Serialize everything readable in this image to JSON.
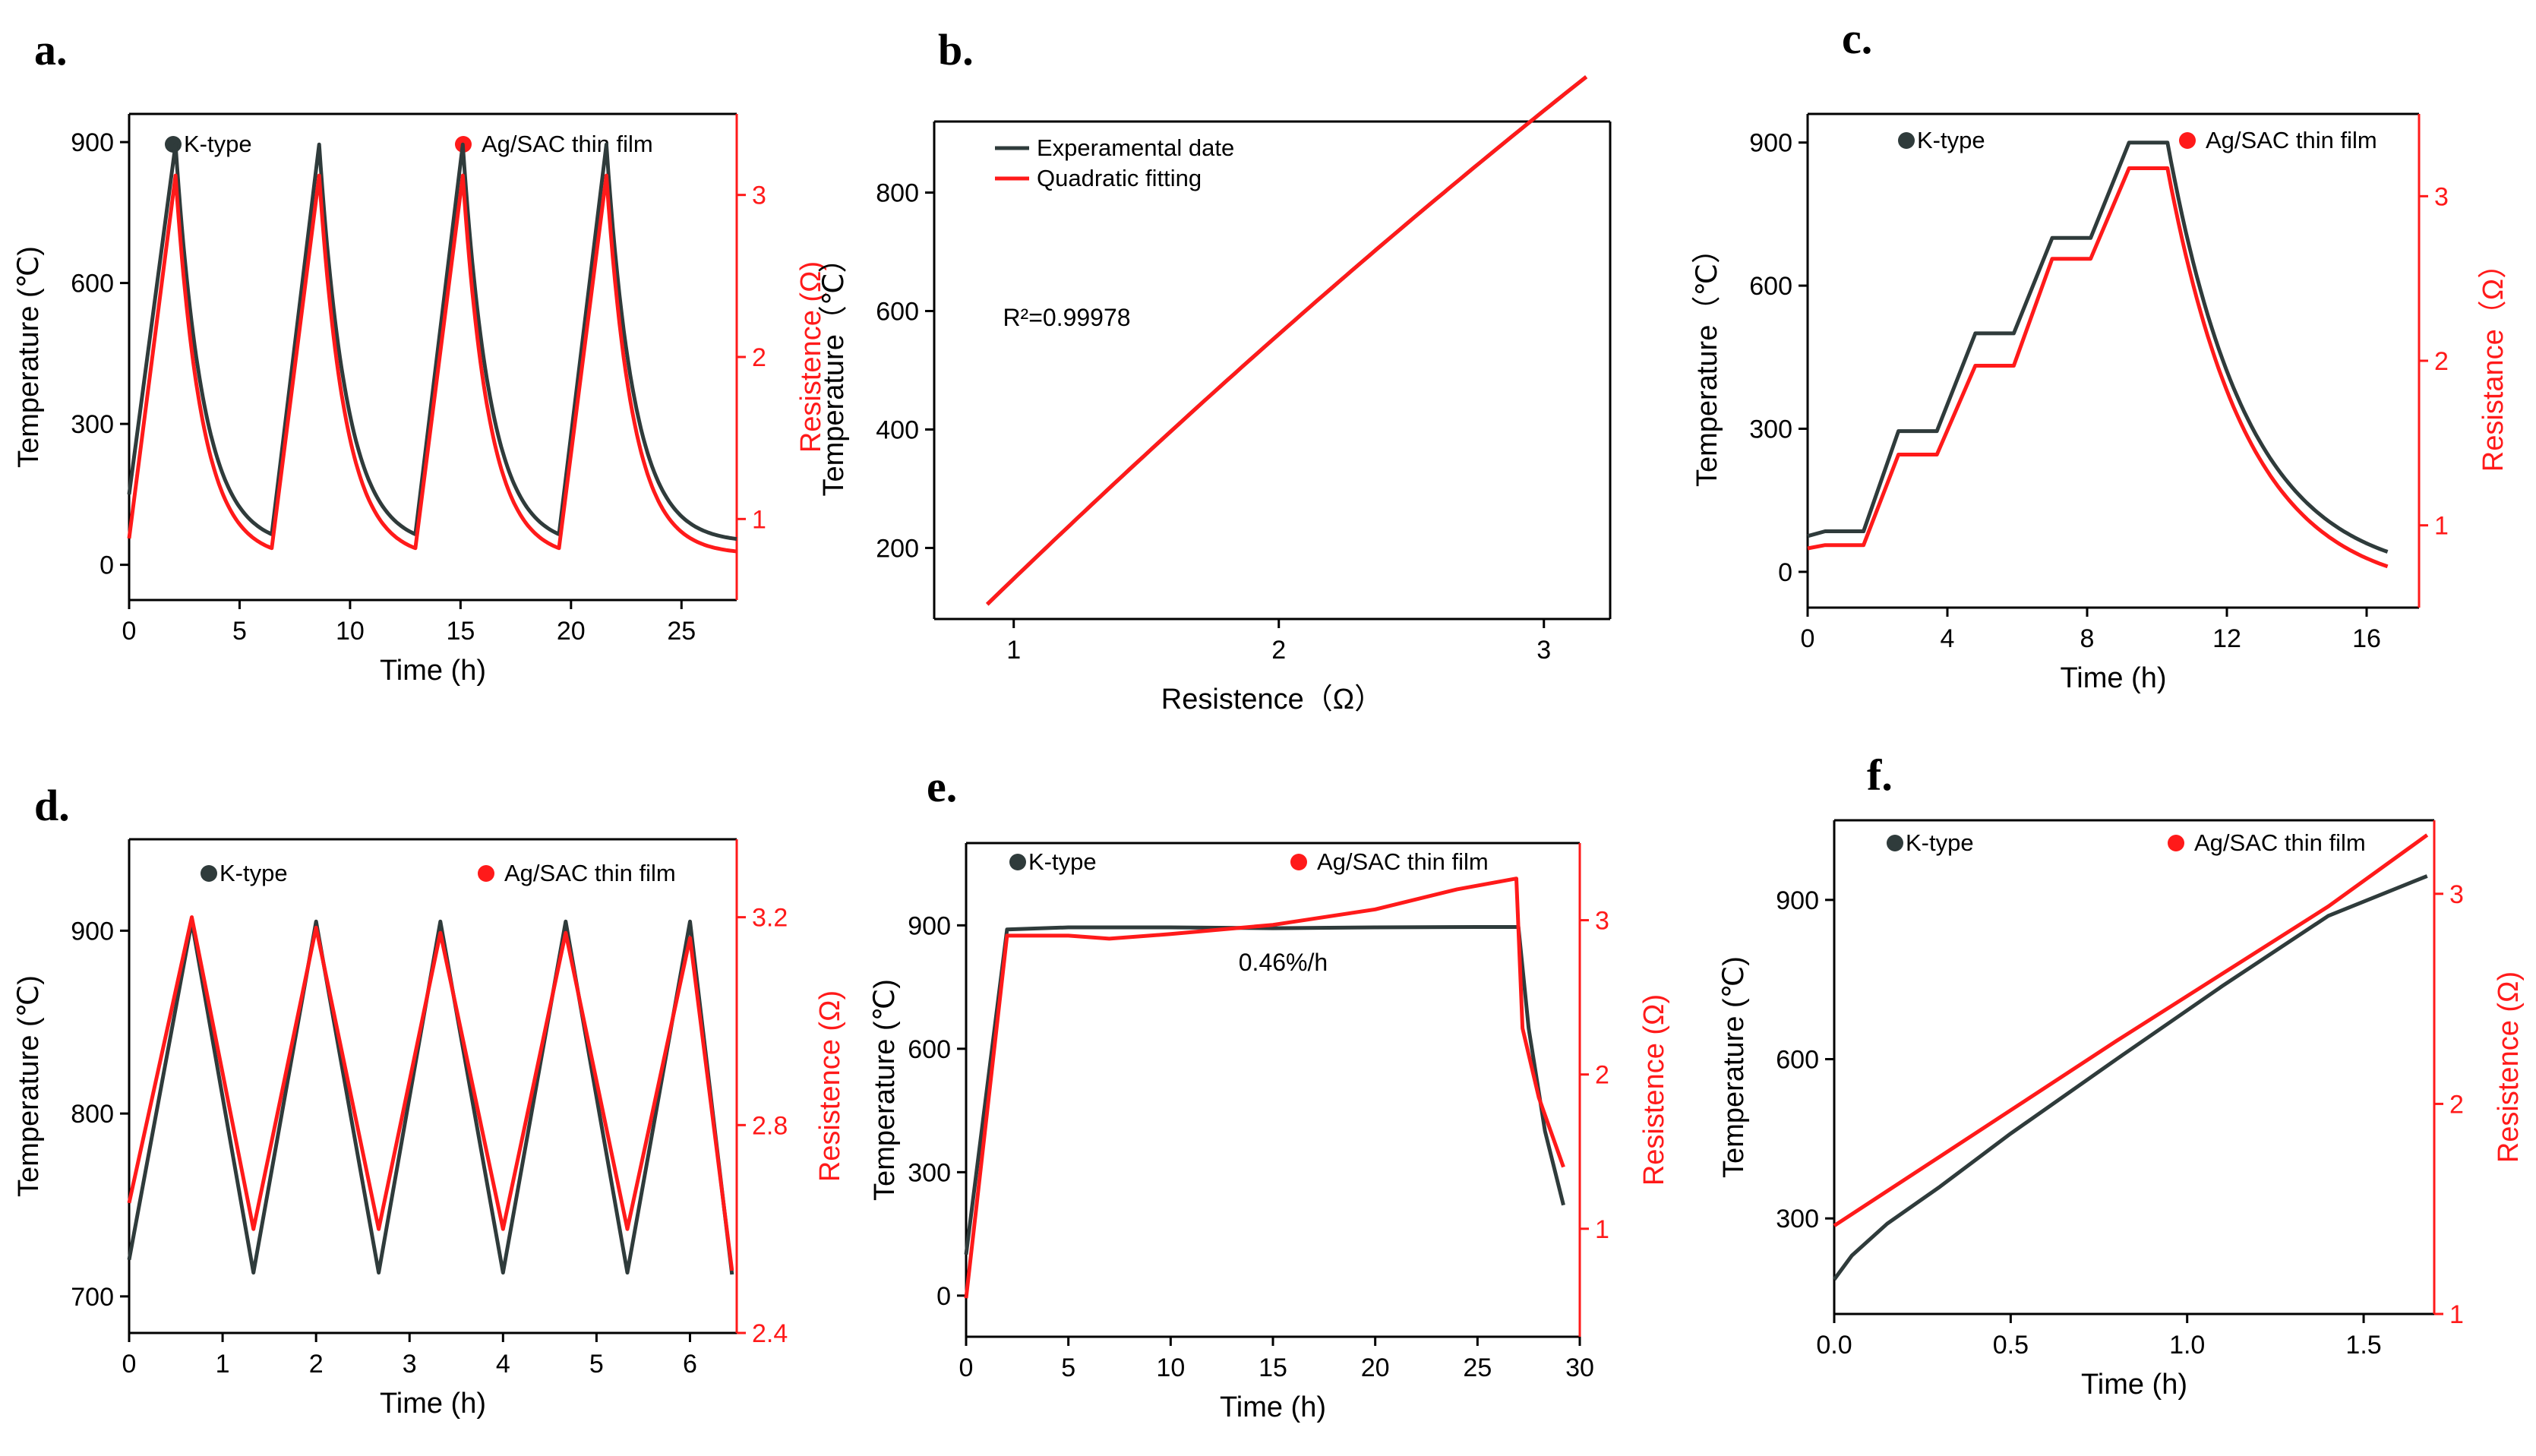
{
  "colors": {
    "k_type": "#2f3b3b",
    "film": "#ff1a1a",
    "axis": "#000000"
  },
  "chart_data": [
    {
      "id": "a",
      "panel_label": "a.",
      "type": "line",
      "title": "",
      "xlabel": "Time (h)",
      "ylabel": "Temperature (℃)",
      "y2label": "Resistence (Ω)",
      "xlim": [
        0,
        27.5
      ],
      "ylim": [
        -75,
        960
      ],
      "y2lim": [
        0.5,
        3.5
      ],
      "xticks": [
        0,
        5,
        10,
        15,
        20,
        25
      ],
      "xtick_labels": [
        "0",
        "5",
        "10",
        "15",
        "20",
        "25"
      ],
      "yticks": [
        0,
        300,
        600,
        900
      ],
      "ytick_labels": [
        "0",
        "300",
        "600",
        "900"
      ],
      "y2ticks": [
        1,
        2,
        3
      ],
      "y2tick_labels": [
        "1",
        "2",
        "3"
      ],
      "legend": [
        "K-type",
        "Ag/SAC thin film"
      ],
      "annotations": [],
      "series": [
        {
          "name": "K-type",
          "axis": "left",
          "color": "#2f3b3b",
          "kind": "cycles",
          "start": 150,
          "peak": 895,
          "trough": 65,
          "peaks_x": [
            2.1,
            8.6,
            15.1,
            21.6
          ],
          "period_end": 27.5,
          "end": 55,
          "tau": 1.25
        },
        {
          "name": "Ag/SAC thin film",
          "axis": "right",
          "color": "#ff1a1a",
          "kind": "cycles",
          "start": 0.88,
          "peak": 3.12,
          "trough": 0.82,
          "peaks_x": [
            2.1,
            8.6,
            15.1,
            21.6
          ],
          "period_end": 27.5,
          "end": 0.8,
          "tau": 1.2
        }
      ]
    },
    {
      "id": "b",
      "panel_label": "b.",
      "type": "line",
      "title": "",
      "xlabel": "Resistence（Ω）",
      "ylabel": "Temperature（℃）",
      "y2label": "",
      "xlim": [
        0.7,
        3.25
      ],
      "ylim": [
        80,
        920
      ],
      "y2lim": null,
      "xticks": [
        1,
        2,
        3
      ],
      "xtick_labels": [
        "1",
        "2",
        "3"
      ],
      "yticks": [
        200,
        400,
        600,
        800
      ],
      "ytick_labels": [
        "200",
        "400",
        "600",
        "800"
      ],
      "y2ticks": [],
      "y2tick_labels": [],
      "legend": [
        "Experamental date",
        "Quadratic fitting"
      ],
      "annotations": [
        "R²=0.99978"
      ],
      "series": [
        {
          "name": "Experamental date",
          "axis": "left",
          "color": "#2f3b3b",
          "kind": "quad",
          "x_start": 0.9,
          "x_end": 3.16,
          "a": -17.6,
          "b": 465.6,
          "c": -300
        },
        {
          "name": "Quadratic fitting",
          "axis": "left",
          "color": "#ff1a1a",
          "kind": "quad",
          "x_start": 0.9,
          "x_end": 3.16,
          "a": -17.6,
          "b": 465.6,
          "c": -300
        }
      ]
    },
    {
      "id": "c",
      "panel_label": "c.",
      "type": "line",
      "title": "",
      "xlabel": "Time (h)",
      "ylabel": "Temperature（℃）",
      "y2label": "Resistance（Ω）",
      "xlim": [
        0,
        17.5
      ],
      "ylim": [
        -75,
        960
      ],
      "y2lim": [
        0.5,
        3.5
      ],
      "xticks": [
        0,
        4,
        8,
        12,
        16
      ],
      "xtick_labels": [
        "0",
        "4",
        "8",
        "12",
        "16"
      ],
      "yticks": [
        0,
        300,
        600,
        900
      ],
      "ytick_labels": [
        "0",
        "300",
        "600",
        "900"
      ],
      "y2ticks": [
        1,
        2,
        3
      ],
      "y2tick_labels": [
        "1",
        "2",
        "3"
      ],
      "legend": [
        "K-type",
        "Ag/SAC thin film"
      ],
      "annotations": [],
      "series": [
        {
          "name": "K-type",
          "axis": "left",
          "color": "#2f3b3b",
          "kind": "points",
          "x": [
            0,
            0.5,
            1.6,
            2.6,
            3.7,
            4.8,
            5.9,
            7.0,
            8.1,
            9.2,
            10.3
          ],
          "y": [
            75,
            85,
            85,
            295,
            295,
            500,
            500,
            700,
            700,
            900,
            900
          ],
          "decay": {
            "from": 10.3,
            "to": 16.6,
            "start": 900,
            "end": 42,
            "tau": 2.3
          }
        },
        {
          "name": "Ag/SAC thin film",
          "axis": "right",
          "color": "#ff1a1a",
          "kind": "points",
          "x": [
            0,
            0.5,
            1.6,
            2.6,
            3.7,
            4.8,
            5.9,
            7.0,
            8.1,
            9.2,
            10.3
          ],
          "y": [
            0.86,
            0.88,
            0.88,
            1.43,
            1.43,
            1.97,
            1.97,
            2.62,
            2.62,
            3.17,
            3.17
          ],
          "decay": {
            "from": 10.3,
            "to": 16.6,
            "start": 3.17,
            "end": 0.75,
            "tau": 2.3
          }
        }
      ]
    },
    {
      "id": "d",
      "panel_label": "d.",
      "type": "line",
      "title": "",
      "xlabel": "Time (h)",
      "ylabel": "Temperature (℃)",
      "y2label": "Resistence (Ω)",
      "xlim": [
        0,
        6.5
      ],
      "ylim": [
        680,
        950
      ],
      "y2lim": [
        2.4,
        3.35
      ],
      "xticks": [
        0,
        1,
        2,
        3,
        4,
        5,
        6
      ],
      "xtick_labels": [
        "0",
        "1",
        "2",
        "3",
        "4",
        "5",
        "6"
      ],
      "yticks": [
        700,
        800,
        900
      ],
      "ytick_labels": [
        "700",
        "800",
        "900"
      ],
      "y2ticks": [
        2.4,
        2.8,
        3.2
      ],
      "y2tick_labels": [
        "2.4",
        "2.8",
        "3.2"
      ],
      "legend": [
        "K-type",
        "Ag/SAC thin film"
      ],
      "annotations": [],
      "series": [
        {
          "name": "K-type",
          "axis": "left",
          "color": "#2f3b3b",
          "kind": "points",
          "x": [
            0,
            0.67,
            1.33,
            2.0,
            2.67,
            3.33,
            4.0,
            4.67,
            5.33,
            6.0,
            6.45
          ],
          "y": [
            720,
            905,
            713,
            905,
            713,
            905,
            713,
            905,
            713,
            905,
            712
          ]
        },
        {
          "name": "Ag/SAC thin film",
          "axis": "right",
          "color": "#ff1a1a",
          "kind": "points",
          "x": [
            0,
            0.67,
            1.33,
            2.0,
            2.67,
            3.33,
            4.0,
            4.67,
            5.33,
            6.0,
            6.45
          ],
          "y": [
            2.65,
            3.2,
            2.6,
            3.18,
            2.6,
            3.17,
            2.6,
            3.17,
            2.6,
            3.16,
            2.52
          ]
        }
      ]
    },
    {
      "id": "e",
      "panel_label": "e.",
      "type": "line",
      "title": "",
      "xlabel": "Time (h)",
      "ylabel": "Temperature (℃)",
      "y2label": "Resistence (Ω)",
      "xlim": [
        0,
        30
      ],
      "ylim": [
        -100,
        1100
      ],
      "y2lim": [
        0.3,
        3.5
      ],
      "xticks": [
        0,
        5,
        10,
        15,
        20,
        25,
        30
      ],
      "xtick_labels": [
        "0",
        "5",
        "10",
        "15",
        "20",
        "25",
        "30"
      ],
      "yticks": [
        0,
        300,
        600,
        900
      ],
      "ytick_labels": [
        "0",
        "300",
        "600",
        "900"
      ],
      "y2ticks": [
        1,
        2,
        3
      ],
      "y2tick_labels": [
        "1",
        "2",
        "3"
      ],
      "legend": [
        "K-type",
        "Ag/SAC thin film"
      ],
      "annotations": [
        "0.46%/h"
      ],
      "series": [
        {
          "name": "K-type",
          "axis": "left",
          "color": "#2f3b3b",
          "kind": "points",
          "x": [
            0,
            2.0,
            5,
            10,
            15,
            20,
            25,
            27.0,
            27.5,
            28.3,
            29.2
          ],
          "y": [
            100,
            890,
            895,
            895,
            893,
            895,
            896,
            896,
            650,
            400,
            220
          ]
        },
        {
          "name": "Ag/SAC thin film",
          "axis": "right",
          "color": "#ff1a1a",
          "kind": "points",
          "x": [
            0,
            2.0,
            5,
            7,
            10,
            15,
            20,
            24,
            26.9,
            27.2,
            28.0,
            29.2
          ],
          "y": [
            0.55,
            2.9,
            2.9,
            2.88,
            2.91,
            2.97,
            3.07,
            3.2,
            3.27,
            2.3,
            1.85,
            1.4
          ]
        }
      ]
    },
    {
      "id": "f",
      "panel_label": "f.",
      "type": "line",
      "title": "",
      "xlabel": "Time (h)",
      "ylabel": "Temperature (℃)",
      "y2label": "Resistence (Ω)",
      "xlim": [
        0,
        1.7
      ],
      "ylim": [
        120,
        1050
      ],
      "y2lim": [
        1,
        3.35
      ],
      "xticks": [
        0.0,
        0.5,
        1.0,
        1.5
      ],
      "xtick_labels": [
        "0.0",
        "0.5",
        "1.0",
        "1.5"
      ],
      "yticks": [
        300,
        600,
        900
      ],
      "ytick_labels": [
        "300",
        "600",
        "900"
      ],
      "y2ticks": [
        1,
        2,
        3
      ],
      "y2tick_labels": [
        "1",
        "2",
        "3"
      ],
      "legend": [
        "K-type",
        "Ag/SAC thin film"
      ],
      "annotations": [],
      "series": [
        {
          "name": "K-type",
          "axis": "left",
          "color": "#2f3b3b",
          "kind": "points",
          "x": [
            0,
            0.05,
            0.15,
            0.3,
            0.5,
            0.8,
            1.1,
            1.4,
            1.68
          ],
          "y": [
            185,
            230,
            290,
            360,
            460,
            600,
            738,
            870,
            945
          ]
        },
        {
          "name": "Ag/SAC thin film",
          "axis": "right",
          "color": "#ff1a1a",
          "kind": "points",
          "x": [
            0,
            0.1,
            0.3,
            0.5,
            0.8,
            1.1,
            1.4,
            1.68
          ],
          "y": [
            1.42,
            1.53,
            1.75,
            1.97,
            2.3,
            2.62,
            2.94,
            3.28
          ]
        }
      ]
    }
  ]
}
